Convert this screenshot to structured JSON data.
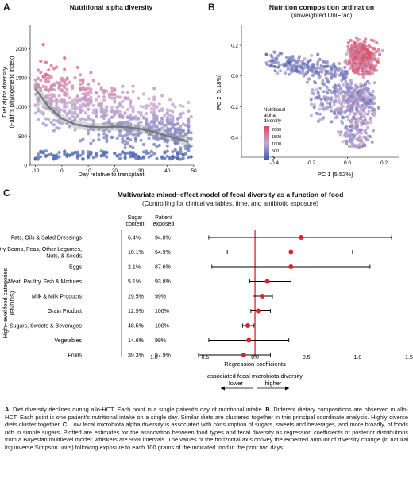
{
  "panel_a": {
    "letter": "A",
    "title": "Nutritional alpha diversity",
    "ylabel_line1": "Diet alpha diversity",
    "ylabel_line2": "(Faith's phylogenetic index)",
    "xlabel": "Day relative to transplant"
  },
  "panel_b": {
    "letter": "B",
    "title": "Nutrition composition ordination",
    "subtitle": "(unweighted UniFrac)",
    "xlabel": "PC 1 [5.52%]",
    "ylabel": "PC 2 [5.18%]",
    "legend_title_1": "Nutritional",
    "legend_title_2": "alpha",
    "legend_title_3": "diversity",
    "legend_ticks": [
      "2000",
      "1500",
      "1000",
      "500",
      "0"
    ]
  },
  "panel_c": {
    "letter": "C",
    "title": "Multivariate mixed−effect model of fecal diversity as a function of food",
    "subtitle": "(Controlling for clinical variables, time, and antibiotic exposure)",
    "col_sugar_1": "Sugar",
    "col_sugar_2": "content",
    "col_exposed_1": "Patient",
    "col_exposed_2": "exposed",
    "ylabel_1": "High−level food categories",
    "ylabel_2": "(FNDDS)",
    "xlabel": "Regression coefficients",
    "assoc_label": "associated fecal microbiota diversity",
    "lower": "lower",
    "higher": "higher"
  },
  "caption": {
    "a_letter": "A",
    "a_text": ". Diet diversity declines during allo-HCT. Each point is a single patient’s day of nutritional intake. ",
    "b_letter": "B",
    "b_text": ". Different dietary compositions are observed in allo-HCT. Each point is one patient’s nutritional intake on a single day. Similar diets are clustered together in this principal coordinate analysis. Highly diverse diets cluster together. ",
    "c_letter": "C",
    "c_text": ". Low fecal microbiota alpha diversity is associated with consumption of sugars, sweets and beverages, and more broadly, of foods rich in simple sugars. Plotted are estimates for the association between food types and fecal diversity as regression coefficients of posterior distributions from a Bayesian multilevel model; whiskers are 95% intervals. The values of the horizontal axis convey the expected amount of diversity change (in natural log inverse Simpson units) following exposure to each 100 grams of the indicated food in the prior two days."
  },
  "chart_data": [
    {
      "type": "scatter",
      "title": "Nutritional alpha diversity",
      "xlabel": "Day relative to transplant",
      "ylabel": "Diet alpha diversity (Faith's phylogenetic index)",
      "xlim": [
        -12,
        50
      ],
      "ylim": [
        0,
        2400
      ],
      "xticks": [
        -10,
        0,
        10,
        20,
        30,
        40,
        50
      ],
      "yticks": [
        0,
        500,
        1000,
        1500,
        2000
      ],
      "color_scale": [
        "#3f5fae",
        "#c4a9d4",
        "#e0475b"
      ],
      "smooth_fit": {
        "x": [
          -10,
          -5,
          0,
          5,
          10,
          15,
          20,
          25,
          30,
          35,
          40,
          45,
          48
        ],
        "y": [
          1310,
          1000,
          800,
          700,
          660,
          650,
          660,
          650,
          620,
          570,
          500,
          440,
          400
        ]
      }
    },
    {
      "type": "scatter",
      "title": "Nutrition composition ordination",
      "subtitle": "(unweighted UniFrac)",
      "xlabel": "PC 1 [5.52%]",
      "ylabel": "PC 2 [5.18%]",
      "xlim": [
        -0.58,
        0.28
      ],
      "ylim": [
        -0.53,
        0.33
      ],
      "xticks": [
        -0.4,
        -0.2,
        0.0,
        0.2
      ],
      "yticks": [
        -0.4,
        -0.2,
        0.0,
        0.2
      ],
      "legend": {
        "title": "Nutritional alpha diversity",
        "ticks": [
          2000,
          1500,
          1000,
          500,
          0
        ],
        "placement": "left-inside"
      }
    },
    {
      "type": "forest",
      "title": "Multivariate mixed−effect model of fecal diversity as a function of food",
      "xlabel": "Regression coefficients",
      "xlim": [
        -1.3,
        1.5
      ],
      "xticks": [
        -1.0,
        -0.5,
        0.0,
        0.5,
        1.0,
        1.5
      ],
      "tick_labels": [
        "−1.0",
        "−0.5",
        "0.0",
        "0.5",
        "1.0",
        "1.5"
      ],
      "reference_line": 0,
      "rows": [
        {
          "category": "Fats, Oils & Salad Dressings",
          "sugar": "6.4%",
          "exposed": "94.8%",
          "estimate": 0.45,
          "low": -0.45,
          "high": 1.33
        },
        {
          "category": "Dry Beans, Peas, Other Legumes, Nuts, & Seeds",
          "sugar": "10.1%",
          "exposed": "64.9%",
          "estimate": 0.35,
          "low": -0.27,
          "high": 0.95
        },
        {
          "category": "Eggs",
          "sugar": "2.1%",
          "exposed": "87.6%",
          "estimate": 0.35,
          "low": -0.42,
          "high": 1.12
        },
        {
          "category": "Meat, Poultry, Fish & Mixtures",
          "sugar": "5.1%",
          "exposed": "93.8%",
          "estimate": 0.12,
          "low": -0.05,
          "high": 0.35
        },
        {
          "category": "Milk & Milk Products",
          "sugar": "29.5%",
          "exposed": "99%",
          "estimate": 0.07,
          "low": -0.02,
          "high": 0.17
        },
        {
          "category": "Grain Product",
          "sugar": "12.5%",
          "exposed": "100%",
          "estimate": 0.03,
          "low": -0.04,
          "high": 0.15
        },
        {
          "category": "Sugars, Sweets & Beverages",
          "sugar": "48.5%",
          "exposed": "100%",
          "estimate": -0.07,
          "low": -0.12,
          "high": -0.01
        },
        {
          "category": "Vegetables",
          "sugar": "14.6%",
          "exposed": "99%",
          "estimate": -0.06,
          "low": -0.45,
          "high": 0.33
        },
        {
          "category": "Fruits",
          "sugar": "39.3%",
          "exposed": "97.9%",
          "estimate": -0.11,
          "low": -0.55,
          "high": 0.15
        }
      ]
    }
  ]
}
